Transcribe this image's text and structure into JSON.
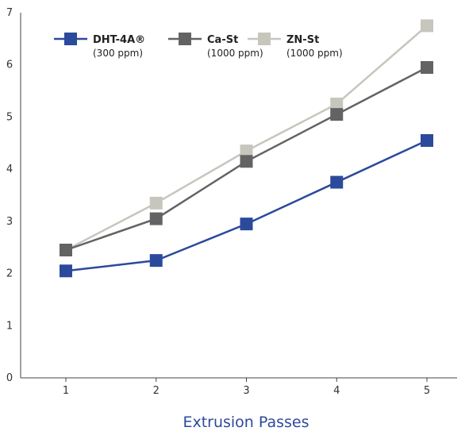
{
  "chart_data": {
    "type": "line",
    "title": "",
    "xlabel": "Extrusion Passes",
    "ylabel": "",
    "x": [
      1,
      2,
      3,
      4,
      5
    ],
    "xlim": [
      0.5,
      5.5
    ],
    "ylim": [
      0,
      7
    ],
    "yticks": [
      0,
      1,
      2,
      3,
      4,
      5,
      6,
      7
    ],
    "grid": false,
    "legend_position": "top-left",
    "series": [
      {
        "name": "DHT-4A®",
        "subtitle": "(300 ppm)",
        "color": "#2b4a9b",
        "values": [
          2.05,
          2.25,
          2.95,
          3.75,
          4.55
        ]
      },
      {
        "name": "Ca-St",
        "subtitle": "(1000 ppm)",
        "color": "#636363",
        "values": [
          2.45,
          3.05,
          4.15,
          5.05,
          5.95
        ]
      },
      {
        "name": "ZN-St",
        "subtitle": "(1000 ppm)",
        "color": "#c7c6bd",
        "values": [
          2.45,
          3.35,
          4.35,
          5.25,
          6.75
        ]
      }
    ]
  }
}
